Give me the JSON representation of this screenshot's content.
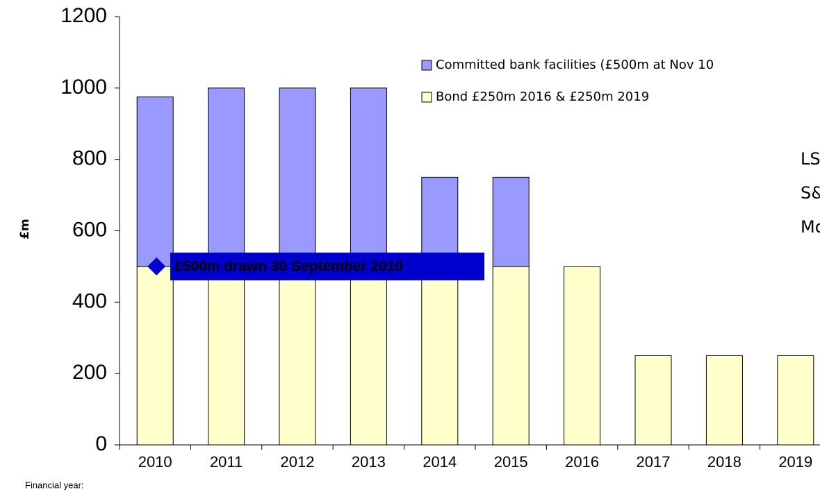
{
  "chart_data": {
    "type": "stacked_bar",
    "y_label": "£m",
    "x_label": "Financial year:",
    "categories": [
      "2010",
      "2011",
      "2012",
      "2013",
      "2014",
      "2015",
      "2016",
      "2017",
      "2018",
      "2019"
    ],
    "series": [
      {
        "name": "Bond £250m 2016 & £250m 2019",
        "color": "#ffffcc",
        "values": [
          500,
          500,
          500,
          500,
          500,
          500,
          500,
          250,
          250,
          250
        ]
      },
      {
        "name": "Committed bank facilities (£500m at Nov 10",
        "color": "#9999ff",
        "values": [
          475,
          500,
          500,
          500,
          250,
          250,
          0,
          0,
          0,
          0
        ]
      }
    ],
    "ylim": [
      0,
      1200
    ],
    "yticks": [
      0,
      200,
      400,
      600,
      800,
      1000,
      1200
    ],
    "annotation": {
      "text": "£500m drawn 30 September 2010",
      "value": 500
    },
    "side_text": [
      "LS",
      "S&",
      "Mo"
    ]
  }
}
